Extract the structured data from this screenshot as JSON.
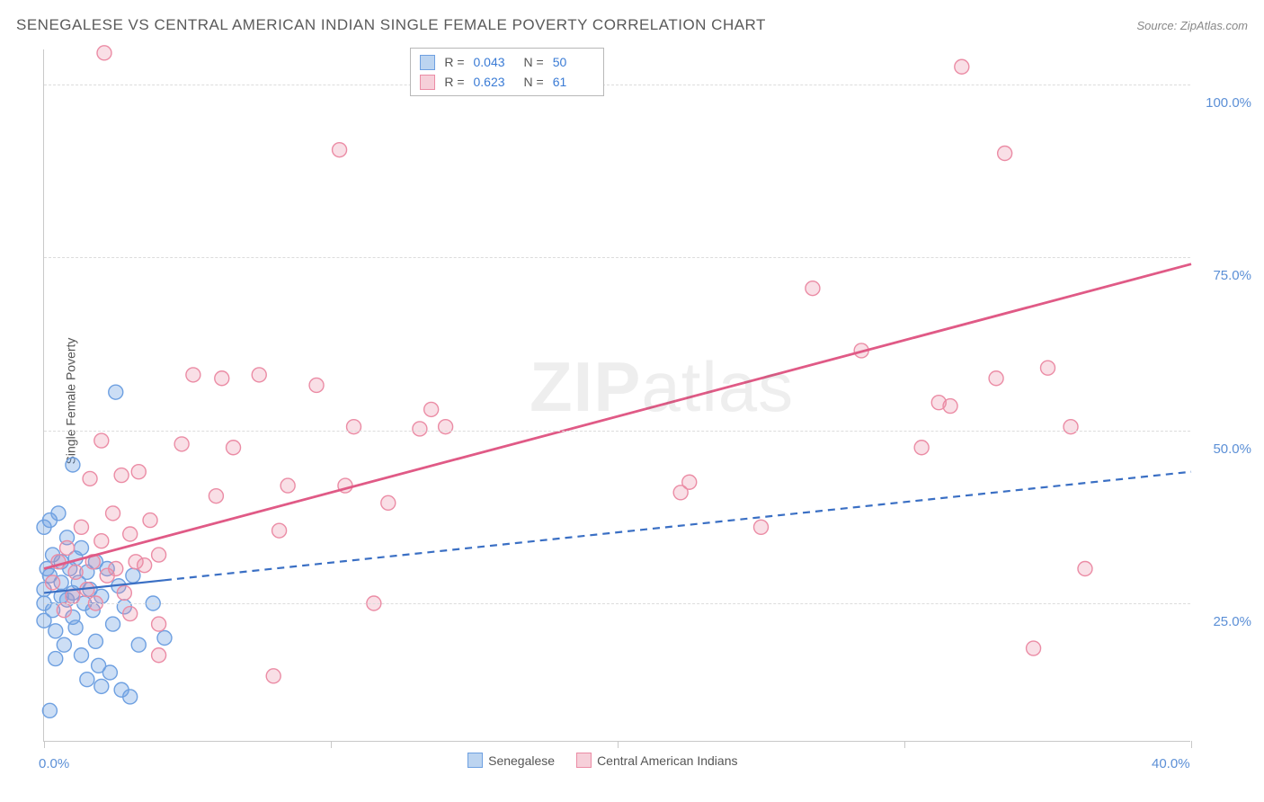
{
  "header": {
    "title": "SENEGALESE VS CENTRAL AMERICAN INDIAN SINGLE FEMALE POVERTY CORRELATION CHART",
    "source": "Source: ZipAtlas.com"
  },
  "ylabel": "Single Female Poverty",
  "watermark": {
    "bold": "ZIP",
    "thin": "atlas"
  },
  "chart": {
    "type": "scatter",
    "x_domain": [
      0,
      40
    ],
    "y_domain": [
      5,
      105
    ],
    "y_ticks": [
      25,
      50,
      75,
      100
    ],
    "y_tick_labels": [
      "25.0%",
      "50.0%",
      "75.0%",
      "100.0%"
    ],
    "x_ticks": [
      0,
      10,
      20,
      30,
      40
    ],
    "x_tick_labels": [
      "0.0%",
      "",
      "",
      "",
      "40.0%"
    ],
    "grid_color": "#dcdcdc",
    "axis_color": "#c8c8c8",
    "background_color": "#ffffff",
    "marker_radius": 8,
    "marker_stroke_width": 1.4,
    "series": [
      {
        "name": "Senegalese",
        "fill_color": "rgba(110,160,225,0.35)",
        "stroke_color": "#6ea0e1",
        "swatch_fill": "#bcd4f0",
        "swatch_border": "#6ea0e1",
        "R": "0.043",
        "N": "50",
        "trend": {
          "x1": 0,
          "y1": 26.5,
          "x2": 40,
          "y2": 44,
          "stroke": "#3a6fc4",
          "width": 2.2,
          "dash": "8,6",
          "solid_until_x": 4.2
        },
        "points": [
          [
            0.0,
            25.0
          ],
          [
            0.0,
            27.0
          ],
          [
            0.1,
            30.0
          ],
          [
            0.0,
            36.0
          ],
          [
            0.2,
            29.0
          ],
          [
            0.3,
            24.0
          ],
          [
            0.2,
            37.0
          ],
          [
            0.0,
            22.5
          ],
          [
            0.3,
            32.0
          ],
          [
            0.6,
            26.0
          ],
          [
            0.4,
            21.0
          ],
          [
            0.5,
            38.0
          ],
          [
            0.6,
            31.0
          ],
          [
            0.6,
            28.0
          ],
          [
            0.8,
            34.5
          ],
          [
            0.8,
            25.5
          ],
          [
            0.9,
            30.0
          ],
          [
            1.0,
            23.0
          ],
          [
            1.0,
            45.0
          ],
          [
            1.0,
            26.5
          ],
          [
            1.1,
            31.5
          ],
          [
            1.1,
            21.5
          ],
          [
            1.2,
            28.0
          ],
          [
            1.3,
            33.0
          ],
          [
            1.4,
            25.0
          ],
          [
            1.5,
            29.5
          ],
          [
            1.5,
            14.0
          ],
          [
            1.6,
            27.0
          ],
          [
            1.7,
            24.0
          ],
          [
            1.8,
            31.0
          ],
          [
            1.8,
            19.5
          ],
          [
            2.0,
            26.0
          ],
          [
            2.0,
            13.0
          ],
          [
            2.2,
            30.0
          ],
          [
            2.4,
            22.0
          ],
          [
            2.5,
            55.5
          ],
          [
            2.6,
            27.5
          ],
          [
            2.8,
            24.5
          ],
          [
            3.0,
            11.5
          ],
          [
            3.1,
            29.0
          ],
          [
            3.3,
            19.0
          ],
          [
            3.8,
            25.0
          ],
          [
            4.2,
            20.0
          ],
          [
            0.4,
            17.0
          ],
          [
            1.3,
            17.5
          ],
          [
            2.3,
            15.0
          ],
          [
            0.7,
            19.0
          ],
          [
            1.9,
            16.0
          ],
          [
            0.2,
            9.5
          ],
          [
            2.7,
            12.5
          ]
        ]
      },
      {
        "name": "Central American Indians",
        "fill_color": "rgba(235,140,165,0.28)",
        "stroke_color": "#eb8ca5",
        "swatch_fill": "#f6cfd9",
        "swatch_border": "#eb8ca5",
        "R": "0.623",
        "N": "61",
        "trend": {
          "x1": 0,
          "y1": 30,
          "x2": 40,
          "y2": 74,
          "stroke": "#e05a86",
          "width": 2.8,
          "dash": null
        },
        "points": [
          [
            0.3,
            28.0
          ],
          [
            0.5,
            31.0
          ],
          [
            0.7,
            24.0
          ],
          [
            0.8,
            33.0
          ],
          [
            1.0,
            26.0
          ],
          [
            1.1,
            29.5
          ],
          [
            1.3,
            36.0
          ],
          [
            1.5,
            27.0
          ],
          [
            1.6,
            43.0
          ],
          [
            1.7,
            31.0
          ],
          [
            1.8,
            25.0
          ],
          [
            2.0,
            34.0
          ],
          [
            2.0,
            48.5
          ],
          [
            2.2,
            29.0
          ],
          [
            2.4,
            38.0
          ],
          [
            2.5,
            30.0
          ],
          [
            2.7,
            43.5
          ],
          [
            2.8,
            26.5
          ],
          [
            3.0,
            23.5
          ],
          [
            3.0,
            35.0
          ],
          [
            3.3,
            44.0
          ],
          [
            3.5,
            30.5
          ],
          [
            3.7,
            37.0
          ],
          [
            4.0,
            32.0
          ],
          [
            4.0,
            22.0
          ],
          [
            4.0,
            17.5
          ],
          [
            4.8,
            48.0
          ],
          [
            5.2,
            58.0
          ],
          [
            6.0,
            40.5
          ],
          [
            6.2,
            57.5
          ],
          [
            6.6,
            47.5
          ],
          [
            7.5,
            58.0
          ],
          [
            8.0,
            14.5
          ],
          [
            8.2,
            35.5
          ],
          [
            8.5,
            42.0
          ],
          [
            9.5,
            56.5
          ],
          [
            10.3,
            90.5
          ],
          [
            10.5,
            42.0
          ],
          [
            10.8,
            50.5
          ],
          [
            11.5,
            25.0
          ],
          [
            12.0,
            39.5
          ],
          [
            13.1,
            50.2
          ],
          [
            13.5,
            53.0
          ],
          [
            14.0,
            50.5
          ],
          [
            22.2,
            41.0
          ],
          [
            22.5,
            42.5
          ],
          [
            25.0,
            36.0
          ],
          [
            26.8,
            70.5
          ],
          [
            28.5,
            61.5
          ],
          [
            30.6,
            47.5
          ],
          [
            31.2,
            54.0
          ],
          [
            31.6,
            53.5
          ],
          [
            32.0,
            102.5
          ],
          [
            33.2,
            57.5
          ],
          [
            33.5,
            90.0
          ],
          [
            34.5,
            18.5
          ],
          [
            35.0,
            59.0
          ],
          [
            35.8,
            50.5
          ],
          [
            36.3,
            30.0
          ],
          [
            3.2,
            31.0
          ],
          [
            2.1,
            104.5
          ]
        ]
      }
    ]
  },
  "legend_bottom": {
    "items": [
      {
        "label": "Senegalese"
      },
      {
        "label": "Central American Indians"
      }
    ]
  },
  "legend_top": {
    "r_label": "R =",
    "n_label": "N ="
  }
}
